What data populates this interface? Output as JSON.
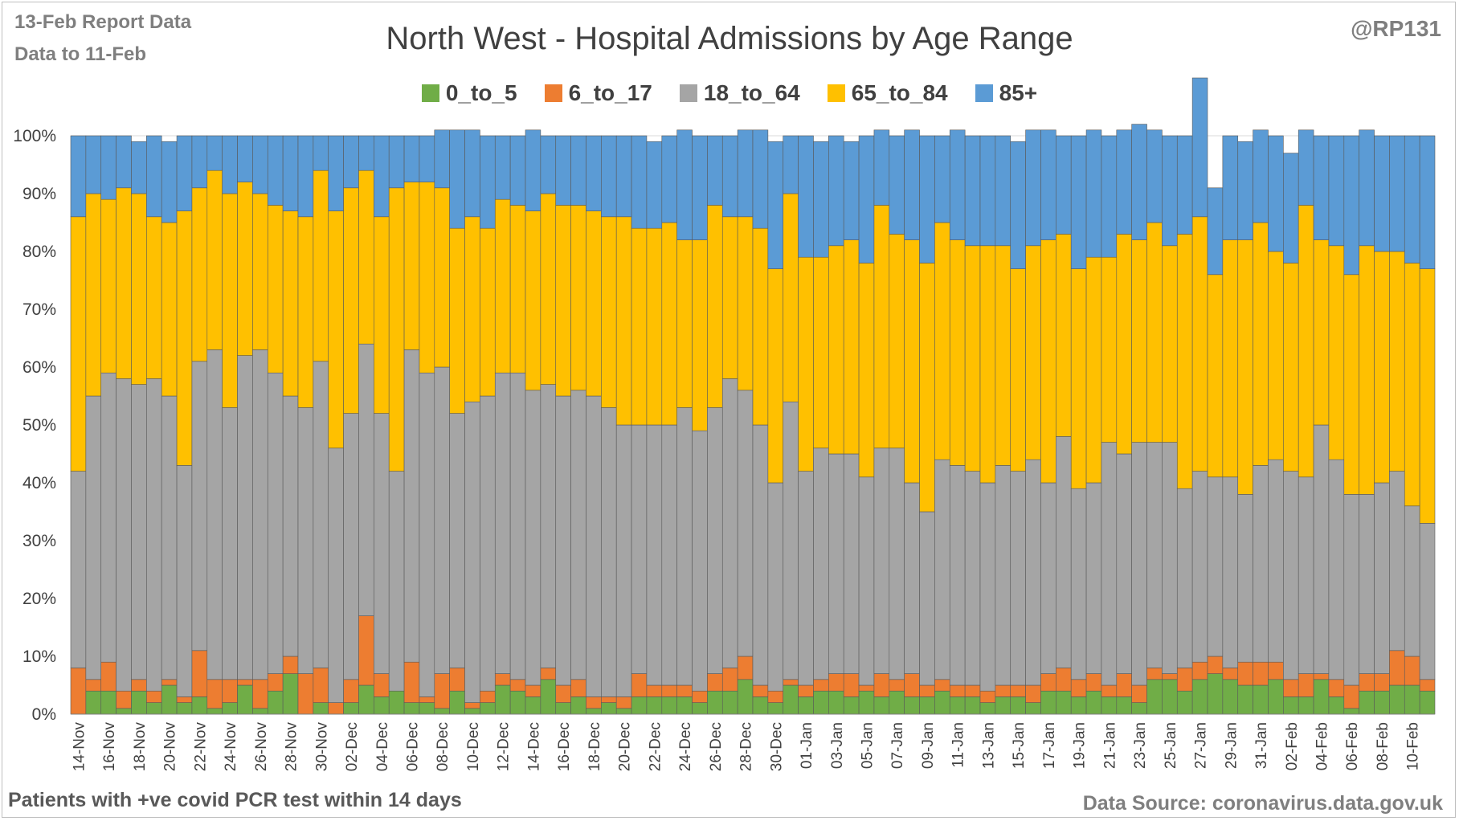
{
  "header": {
    "report_line1": "13-Feb Report Data",
    "report_line2": "Data to 11-Feb",
    "handle": "@RP131"
  },
  "footer": {
    "note": "Patients with  +ve covid PCR test within 14 days",
    "source": "Data Source: coronavirus.data.gov.uk"
  },
  "chart_data": {
    "type": "bar",
    "stacked": "percent",
    "title": "North West - Hospital Admissions by Age Range",
    "xlabel": "",
    "ylabel": "",
    "ylim": [
      0,
      100
    ],
    "yticks": [
      "0%",
      "10%",
      "20%",
      "30%",
      "40%",
      "50%",
      "60%",
      "70%",
      "80%",
      "90%",
      "100%"
    ],
    "grid": true,
    "legend_position": "top",
    "categories": [
      "14-Nov",
      "15-Nov",
      "16-Nov",
      "17-Nov",
      "18-Nov",
      "19-Nov",
      "20-Nov",
      "21-Nov",
      "22-Nov",
      "23-Nov",
      "24-Nov",
      "25-Nov",
      "26-Nov",
      "27-Nov",
      "28-Nov",
      "29-Nov",
      "30-Nov",
      "01-Dec",
      "02-Dec",
      "03-Dec",
      "04-Dec",
      "05-Dec",
      "06-Dec",
      "07-Dec",
      "08-Dec",
      "09-Dec",
      "10-Dec",
      "11-Dec",
      "12-Dec",
      "13-Dec",
      "14-Dec",
      "15-Dec",
      "16-Dec",
      "17-Dec",
      "18-Dec",
      "19-Dec",
      "20-Dec",
      "21-Dec",
      "22-Dec",
      "23-Dec",
      "24-Dec",
      "25-Dec",
      "26-Dec",
      "27-Dec",
      "28-Dec",
      "29-Dec",
      "30-Dec",
      "31-Dec",
      "01-Jan",
      "02-Jan",
      "03-Jan",
      "04-Jan",
      "05-Jan",
      "06-Jan",
      "07-Jan",
      "08-Jan",
      "09-Jan",
      "10-Jan",
      "11-Jan",
      "12-Jan",
      "13-Jan",
      "14-Jan",
      "15-Jan",
      "16-Jan",
      "17-Jan",
      "18-Jan",
      "19-Jan",
      "20-Jan",
      "21-Jan",
      "22-Jan",
      "23-Jan",
      "24-Jan",
      "25-Jan",
      "26-Jan",
      "27-Jan",
      "28-Jan",
      "29-Jan",
      "30-Jan",
      "31-Jan",
      "01-Feb",
      "02-Feb",
      "03-Feb",
      "04-Feb",
      "05-Feb",
      "06-Feb",
      "07-Feb",
      "08-Feb",
      "09-Feb",
      "10-Feb",
      "11-Feb"
    ],
    "tick_labels": [
      "14-Nov",
      "",
      "16-Nov",
      "",
      "18-Nov",
      "",
      "20-Nov",
      "",
      "22-Nov",
      "",
      "24-Nov",
      "",
      "26-Nov",
      "",
      "28-Nov",
      "",
      "30-Nov",
      "",
      "02-Dec",
      "",
      "04-Dec",
      "",
      "06-Dec",
      "",
      "08-Dec",
      "",
      "10-Dec",
      "",
      "12-Dec",
      "",
      "14-Dec",
      "",
      "16-Dec",
      "",
      "18-Dec",
      "",
      "20-Dec",
      "",
      "22-Dec",
      "",
      "24-Dec",
      "",
      "26-Dec",
      "",
      "28-Dec",
      "",
      "30-Dec",
      "",
      "01-Jan",
      "",
      "03-Jan",
      "",
      "05-Jan",
      "",
      "07-Jan",
      "",
      "09-Jan",
      "",
      "11-Jan",
      "",
      "13-Jan",
      "",
      "15-Jan",
      "",
      "17-Jan",
      "",
      "19-Jan",
      "",
      "21-Jan",
      "",
      "23-Jan",
      "",
      "25-Jan",
      "",
      "27-Jan",
      "",
      "29-Jan",
      "",
      "31-Jan",
      "",
      "02-Feb",
      "",
      "04-Feb",
      "",
      "06-Feb",
      "",
      "08-Feb",
      "",
      "10-Feb",
      ""
    ],
    "series": [
      {
        "name": "0_to_5",
        "color": "#70ad47",
        "values": [
          0,
          4,
          4,
          1,
          4,
          2,
          5,
          2,
          3,
          1,
          2,
          5,
          1,
          4,
          7,
          0,
          2,
          0,
          2,
          5,
          3,
          4,
          2,
          2,
          1,
          4,
          1,
          2,
          5,
          4,
          3,
          6,
          2,
          3,
          1,
          2,
          1,
          3,
          3,
          3,
          3,
          2,
          4,
          4,
          6,
          3,
          2,
          5,
          3,
          4,
          4,
          3,
          4,
          3,
          4,
          3,
          3,
          4,
          3,
          3,
          2,
          3,
          3,
          2,
          4,
          4,
          3,
          4,
          3,
          3,
          2,
          6,
          6,
          4,
          6,
          7,
          6,
          5,
          5,
          6,
          3,
          3,
          6,
          3,
          1,
          4,
          4,
          5,
          5,
          4
        ]
      },
      {
        "name": "6_to_17",
        "color": "#ed7d31",
        "values": [
          8,
          2,
          5,
          3,
          2,
          2,
          1,
          1,
          8,
          5,
          4,
          1,
          5,
          3,
          3,
          7,
          6,
          2,
          4,
          12,
          4,
          0,
          7,
          1,
          6,
          4,
          1,
          2,
          2,
          2,
          2,
          2,
          3,
          3,
          2,
          1,
          2,
          4,
          2,
          2,
          2,
          2,
          3,
          4,
          4,
          2,
          2,
          1,
          2,
          2,
          3,
          4,
          1,
          4,
          2,
          4,
          2,
          2,
          2,
          2,
          2,
          2,
          2,
          3,
          3,
          4,
          3,
          3,
          2,
          4,
          3,
          2,
          1,
          4,
          3,
          3,
          2,
          4,
          4,
          3,
          3,
          4,
          1,
          3,
          4,
          3,
          3,
          6,
          5,
          2
        ]
      },
      {
        "name": "18_to_64",
        "color": "#a5a5a5",
        "values": [
          34,
          49,
          50,
          54,
          51,
          54,
          49,
          40,
          50,
          57,
          47,
          56,
          57,
          52,
          45,
          46,
          53,
          44,
          46,
          47,
          45,
          38,
          54,
          56,
          53,
          44,
          52,
          51,
          52,
          53,
          51,
          49,
          50,
          50,
          52,
          50,
          47,
          43,
          45,
          45,
          48,
          45,
          46,
          50,
          46,
          45,
          36,
          48,
          37,
          40,
          38,
          38,
          36,
          39,
          40,
          33,
          30,
          38,
          38,
          37,
          36,
          38,
          37,
          39,
          33,
          40,
          33,
          33,
          42,
          38,
          42,
          39,
          40,
          31,
          33,
          31,
          33,
          29,
          34,
          35,
          36,
          34,
          43,
          38,
          33,
          31,
          33,
          31,
          26,
          27
        ]
      },
      {
        "name": "65_to_84",
        "color": "#ffc000",
        "values": [
          44,
          35,
          30,
          33,
          33,
          28,
          30,
          44,
          30,
          31,
          37,
          30,
          27,
          29,
          32,
          33,
          33,
          41,
          39,
          30,
          34,
          49,
          29,
          33,
          31,
          32,
          32,
          29,
          30,
          29,
          31,
          33,
          33,
          32,
          32,
          33,
          36,
          34,
          34,
          35,
          29,
          33,
          35,
          28,
          30,
          34,
          37,
          36,
          37,
          33,
          36,
          37,
          37,
          42,
          37,
          42,
          43,
          41,
          39,
          39,
          41,
          38,
          35,
          37,
          42,
          35,
          38,
          39,
          32,
          38,
          35,
          38,
          34,
          44,
          44,
          35,
          41,
          44,
          42,
          36,
          36,
          47,
          32,
          37,
          38,
          43,
          40,
          38,
          42,
          44
        ]
      },
      {
        "name": "85+",
        "color": "#5b9bd5",
        "values": [
          14,
          10,
          11,
          9,
          9,
          14,
          14,
          13,
          9,
          6,
          10,
          8,
          10,
          12,
          13,
          14,
          6,
          13,
          9,
          6,
          14,
          9,
          8,
          8,
          10,
          17,
          15,
          16,
          11,
          12,
          14,
          10,
          12,
          12,
          13,
          14,
          14,
          16,
          15,
          15,
          19,
          18,
          12,
          14,
          15,
          17,
          22,
          10,
          21,
          20,
          19,
          17,
          22,
          13,
          17,
          19,
          22,
          15,
          19,
          19,
          19,
          19,
          22,
          20,
          19,
          17,
          23,
          22,
          21,
          18,
          20,
          16,
          19,
          17,
          24,
          15,
          18,
          17,
          16,
          20,
          19,
          13,
          18,
          19,
          24,
          20,
          20,
          20,
          22,
          23
        ]
      }
    ]
  }
}
